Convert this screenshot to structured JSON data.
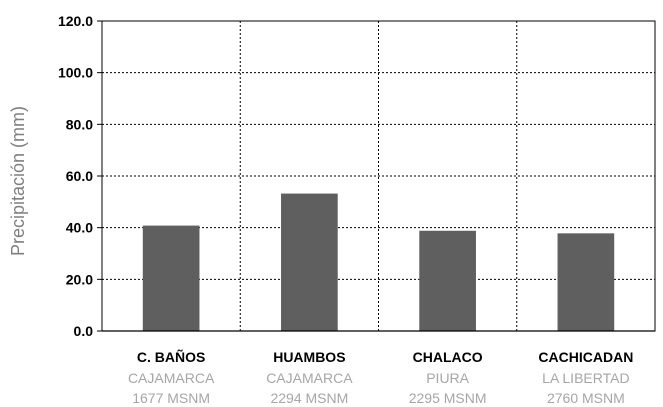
{
  "chart_data": {
    "type": "bar",
    "title": "",
    "xlabel": "",
    "ylabel": "Precipitación (mm)",
    "ylim": [
      0,
      120
    ],
    "y_ticks": [
      "0.0",
      "20.0",
      "40.0",
      "60.0",
      "80.0",
      "100.0",
      "120.0"
    ],
    "y_tick_values": [
      0,
      20,
      40,
      60,
      80,
      100,
      120
    ],
    "grid": "dotted",
    "legend": "none",
    "bar_color": "#5f5f5f",
    "categories": [
      {
        "name": "C. BAÑOS",
        "region": "CAJAMARCA",
        "altitude": "1677 MSNM"
      },
      {
        "name": "HUAMBOS",
        "region": "CAJAMARCA",
        "altitude": "2294 MSNM"
      },
      {
        "name": "CHALACO",
        "region": "PIURA",
        "altitude": "2295 MSNM"
      },
      {
        "name": "CACHICADAN",
        "region": "LA LIBERTAD",
        "altitude": "2760 MSNM"
      }
    ],
    "values": [
      40.8,
      53.2,
      38.8,
      37.8
    ]
  }
}
